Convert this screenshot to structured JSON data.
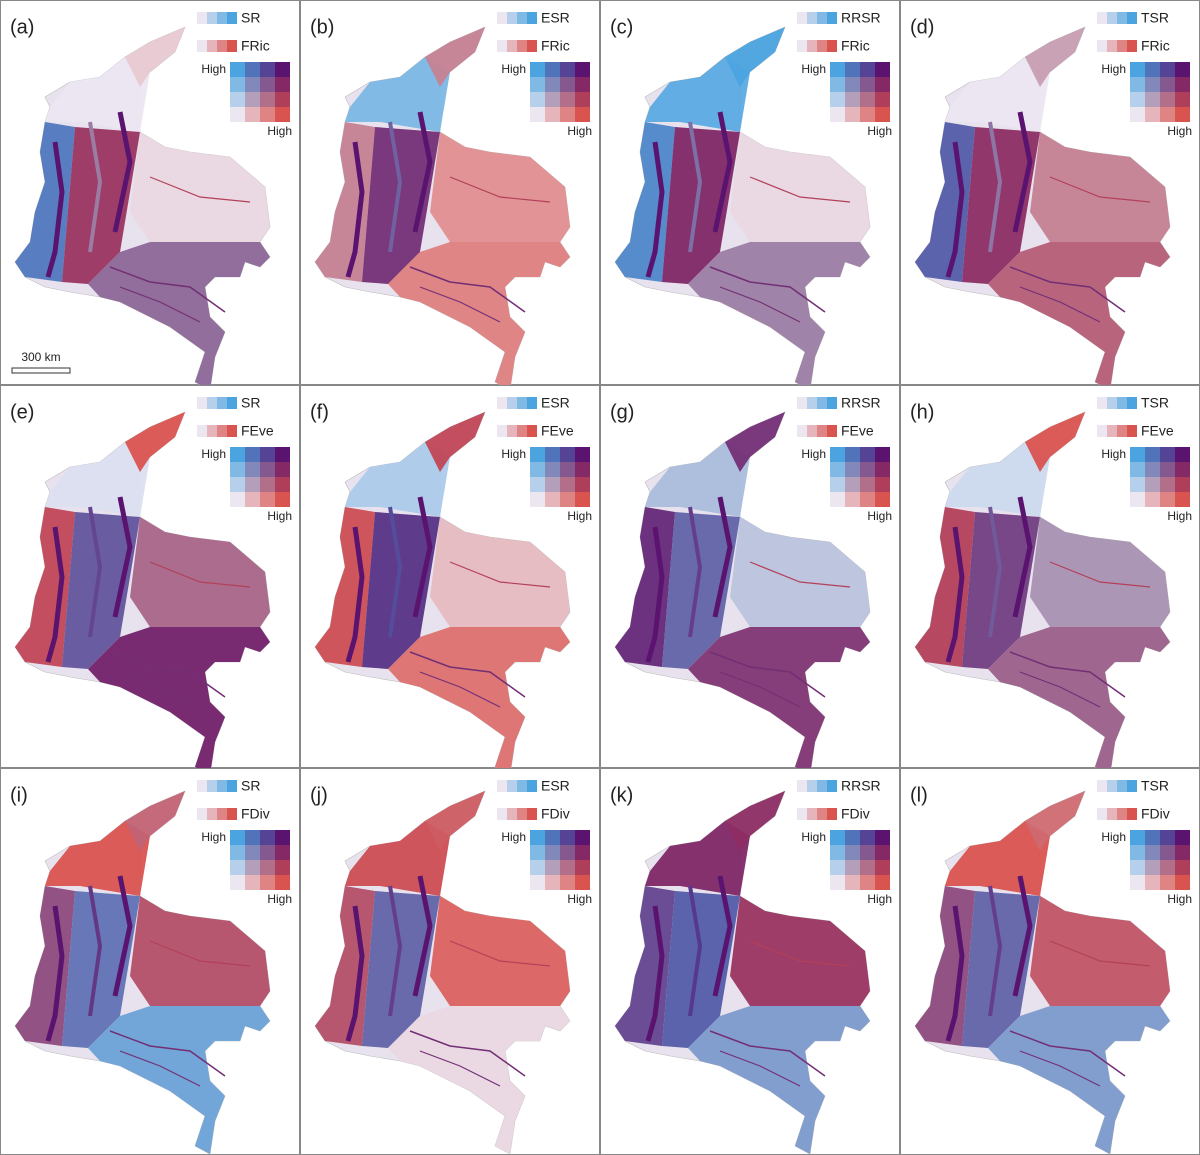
{
  "panels": [
    {
      "label": "(a)",
      "x_variable": "SR",
      "y_variable": "FRic",
      "high_left": "High",
      "high_bottom": "High"
    },
    {
      "label": "(b)",
      "x_variable": "ESR",
      "y_variable": "FRic",
      "high_left": "High",
      "high_bottom": "High"
    },
    {
      "label": "(c)",
      "x_variable": "RRSR",
      "y_variable": "FRic",
      "high_left": "High",
      "high_bottom": "High"
    },
    {
      "label": "(d)",
      "x_variable": "TSR",
      "y_variable": "FRic",
      "high_left": "High",
      "high_bottom": "High"
    },
    {
      "label": "(e)",
      "x_variable": "SR",
      "y_variable": "FEve",
      "high_left": "High",
      "high_bottom": "High"
    },
    {
      "label": "(f)",
      "x_variable": "ESR",
      "y_variable": "FEve",
      "high_left": "High",
      "high_bottom": "High"
    },
    {
      "label": "(g)",
      "x_variable": "RRSR",
      "y_variable": "FEve",
      "high_left": "High",
      "high_bottom": "High"
    },
    {
      "label": "(h)",
      "x_variable": "TSR",
      "y_variable": "FEve",
      "high_left": "High",
      "high_bottom": "High"
    },
    {
      "label": "(i)",
      "x_variable": "SR",
      "y_variable": "FDiv",
      "high_left": "High",
      "high_bottom": "High"
    },
    {
      "label": "(j)",
      "x_variable": "ESR",
      "y_variable": "FDiv",
      "high_left": "High",
      "high_bottom": "High"
    },
    {
      "label": "(k)",
      "x_variable": "RRSR",
      "y_variable": "FDiv",
      "high_left": "High",
      "high_bottom": "High"
    },
    {
      "label": "(l)",
      "x_variable": "TSR",
      "y_variable": "FDiv",
      "high_left": "High",
      "high_bottom": "High"
    }
  ],
  "scale_bar": "300 km"
}
